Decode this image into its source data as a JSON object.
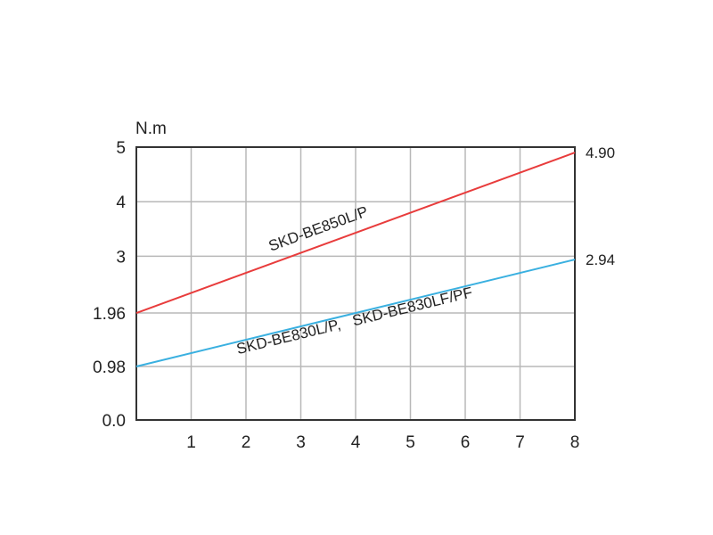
{
  "chart_data": {
    "type": "line",
    "ylabel": "N.m",
    "xlim": [
      0,
      8
    ],
    "ylim": [
      0,
      5
    ],
    "grid": true,
    "x_ticks": [
      "1",
      "2",
      "3",
      "4",
      "5",
      "6",
      "7",
      "8"
    ],
    "y_ticks": [
      {
        "value": 0,
        "label": "0.0"
      },
      {
        "value": 0.98,
        "label": "0.98"
      },
      {
        "value": 1.96,
        "label": "1.96"
      },
      {
        "value": 3,
        "label": "3"
      },
      {
        "value": 4,
        "label": "4"
      },
      {
        "value": 5,
        "label": "5"
      }
    ],
    "series": [
      {
        "name": "SKD-BE850L/P",
        "color": "#e83c3c",
        "x": [
          0,
          8
        ],
        "y": [
          1.96,
          4.9
        ],
        "end_label": "4.90"
      },
      {
        "name": "SKD-BE830L/P,   SKD-BE830LF/PF",
        "color": "#3ab0e0",
        "x": [
          0,
          8
        ],
        "y": [
          0.98,
          2.94
        ],
        "end_label": "2.94"
      }
    ]
  }
}
